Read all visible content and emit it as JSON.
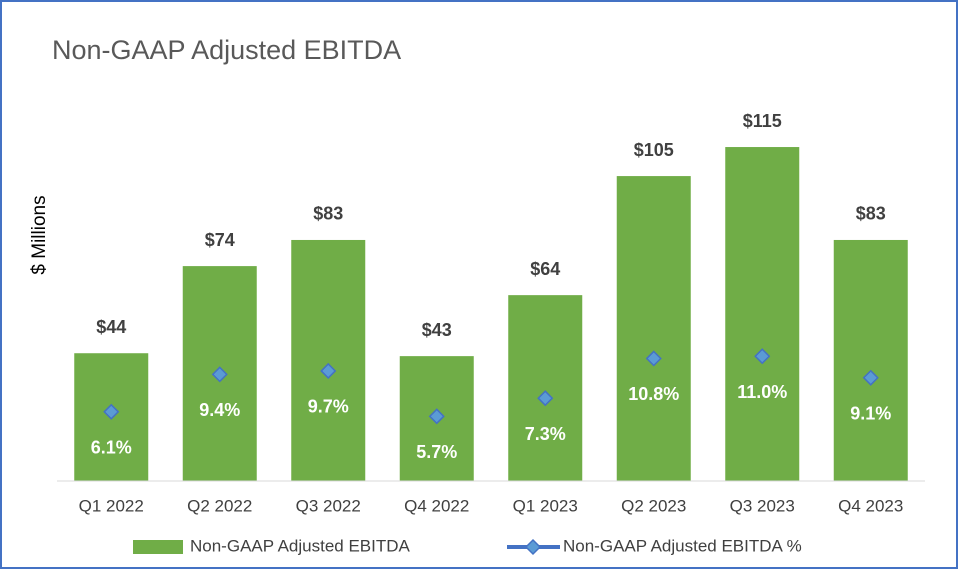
{
  "chart_data": {
    "type": "bar-line",
    "title": "Non-GAAP Adjusted EBITDA",
    "y_label": "$ Millions",
    "categories": [
      "Q1 2022",
      "Q2 2022",
      "Q3 2022",
      "Q4 2022",
      "Q1 2023",
      "Q2 2023",
      "Q3 2023",
      "Q4 2023"
    ],
    "series": [
      {
        "name": "Non-GAAP Adjusted EBITDA",
        "type": "bar",
        "color": "#70ad47",
        "values": [
          44,
          74,
          83,
          43,
          64,
          105,
          115,
          83
        ],
        "value_labels": [
          "$44",
          "$74",
          "$83",
          "$43",
          "$64",
          "$105",
          "$115",
          "$83"
        ]
      },
      {
        "name": "Non-GAAP Adjusted EBITDA %",
        "type": "line",
        "axis": "y2",
        "color": "#4472c4",
        "values": [
          6.1,
          9.4,
          9.7,
          5.7,
          7.3,
          10.8,
          11.0,
          9.1
        ],
        "value_labels": [
          "6.1%",
          "9.4%",
          "9.7%",
          "5.7%",
          "7.3%",
          "10.8%",
          "11.0%",
          "9.1%"
        ]
      }
    ],
    "ylim": [
      0,
      125
    ],
    "y2lim": [
      0,
      32
    ],
    "legend": "bottom"
  }
}
